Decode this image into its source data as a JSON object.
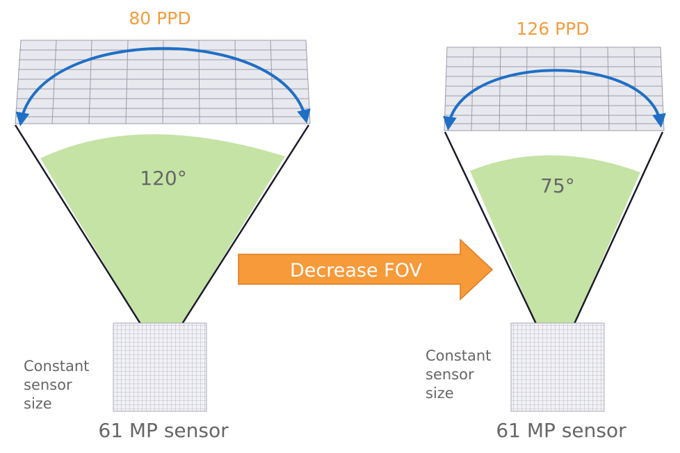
{
  "left": {
    "ppd_label": "80 PPD",
    "angle_label": "120°",
    "side_note": [
      "Constant",
      "sensor",
      "size"
    ],
    "sensor_label": "61 MP sensor"
  },
  "right": {
    "ppd_label": "126 PPD",
    "angle_label": "75°",
    "side_note": [
      "Constant",
      "sensor",
      "size"
    ],
    "sensor_label": "61 MP sensor"
  },
  "arrow": {
    "label": "Decrease FOV"
  },
  "colors": {
    "ppd_text": "#F39C3D",
    "fov_fill": "#C5E3A5",
    "arc": "#1F6FC5",
    "arrow_fill": "#F79A3A",
    "arrow_stroke": "#E07A20",
    "muted_text": "#666666",
    "panel_fill": "#E8E9EE",
    "panel_line": "#9A9AAA",
    "cone_line": "#1A1A2E"
  }
}
